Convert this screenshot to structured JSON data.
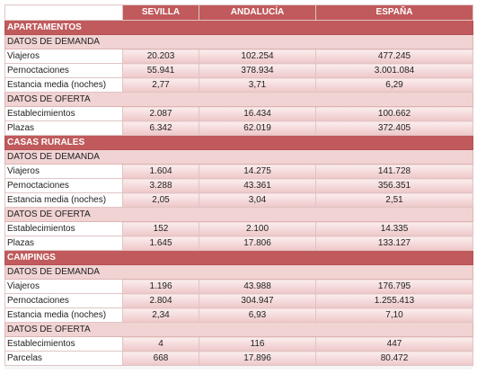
{
  "headers": [
    "",
    "SEVILLA",
    "ANDALUCÍA",
    "ESPAÑA"
  ],
  "sections": [
    {
      "title": "APARTAMENTOS",
      "groups": [
        {
          "title": "DATOS DE DEMANDA",
          "rows": [
            {
              "label": "Viajeros",
              "sevilla": "20.203",
              "andalucia": "102.254",
              "espana": "477.245"
            },
            {
              "label": "Pernoctaciones",
              "sevilla": "55.941",
              "andalucia": "378.934",
              "espana": "3.001.084"
            },
            {
              "label": "Estancia media (noches)",
              "sevilla": "2,77",
              "andalucia": "3,71",
              "espana": "6,29"
            }
          ]
        },
        {
          "title": "DATOS DE OFERTA",
          "rows": [
            {
              "label": "Establecimientos",
              "sevilla": "2.087",
              "andalucia": "16.434",
              "espana": "100.662"
            },
            {
              "label": "Plazas",
              "sevilla": "6.342",
              "andalucia": "62.019",
              "espana": "372.405"
            }
          ]
        }
      ]
    },
    {
      "title": "CASAS RURALES",
      "groups": [
        {
          "title": "DATOS DE DEMANDA",
          "rows": [
            {
              "label": "Viajeros",
              "sevilla": "1.604",
              "andalucia": "14.275",
              "espana": "141.728"
            },
            {
              "label": "Pernoctaciones",
              "sevilla": "3.288",
              "andalucia": "43.361",
              "espana": "356.351"
            },
            {
              "label": "Estancia media (noches)",
              "sevilla": "2,05",
              "andalucia": "3,04",
              "espana": "2,51"
            }
          ]
        },
        {
          "title": "DATOS DE OFERTA",
          "rows": [
            {
              "label": "Establecimientos",
              "sevilla": "152",
              "andalucia": "2.100",
              "espana": "14.335"
            },
            {
              "label": "Plazas",
              "sevilla": "1.645",
              "andalucia": "17.806",
              "espana": "133.127"
            }
          ]
        }
      ]
    },
    {
      "title": "CAMPINGS",
      "groups": [
        {
          "title": "DATOS DE DEMANDA",
          "rows": [
            {
              "label": "Viajeros",
              "sevilla": "1.196",
              "andalucia": "43.988",
              "espana": "176.795"
            },
            {
              "label": "Pernoctaciones",
              "sevilla": "2.804",
              "andalucia": "304.947",
              "espana": "1.255.413"
            },
            {
              "label": "Estancia media (noches)",
              "sevilla": "2,34",
              "andalucia": "6,93",
              "espana": "7,10"
            }
          ]
        },
        {
          "title": "DATOS DE OFERTA",
          "rows": [
            {
              "label": "Establecimientos",
              "sevilla": "4",
              "andalucia": "116",
              "espana": "447"
            },
            {
              "label": "Parcelas",
              "sevilla": "668",
              "andalucia": "17.896",
              "espana": "80.472"
            }
          ]
        }
      ]
    }
  ]
}
